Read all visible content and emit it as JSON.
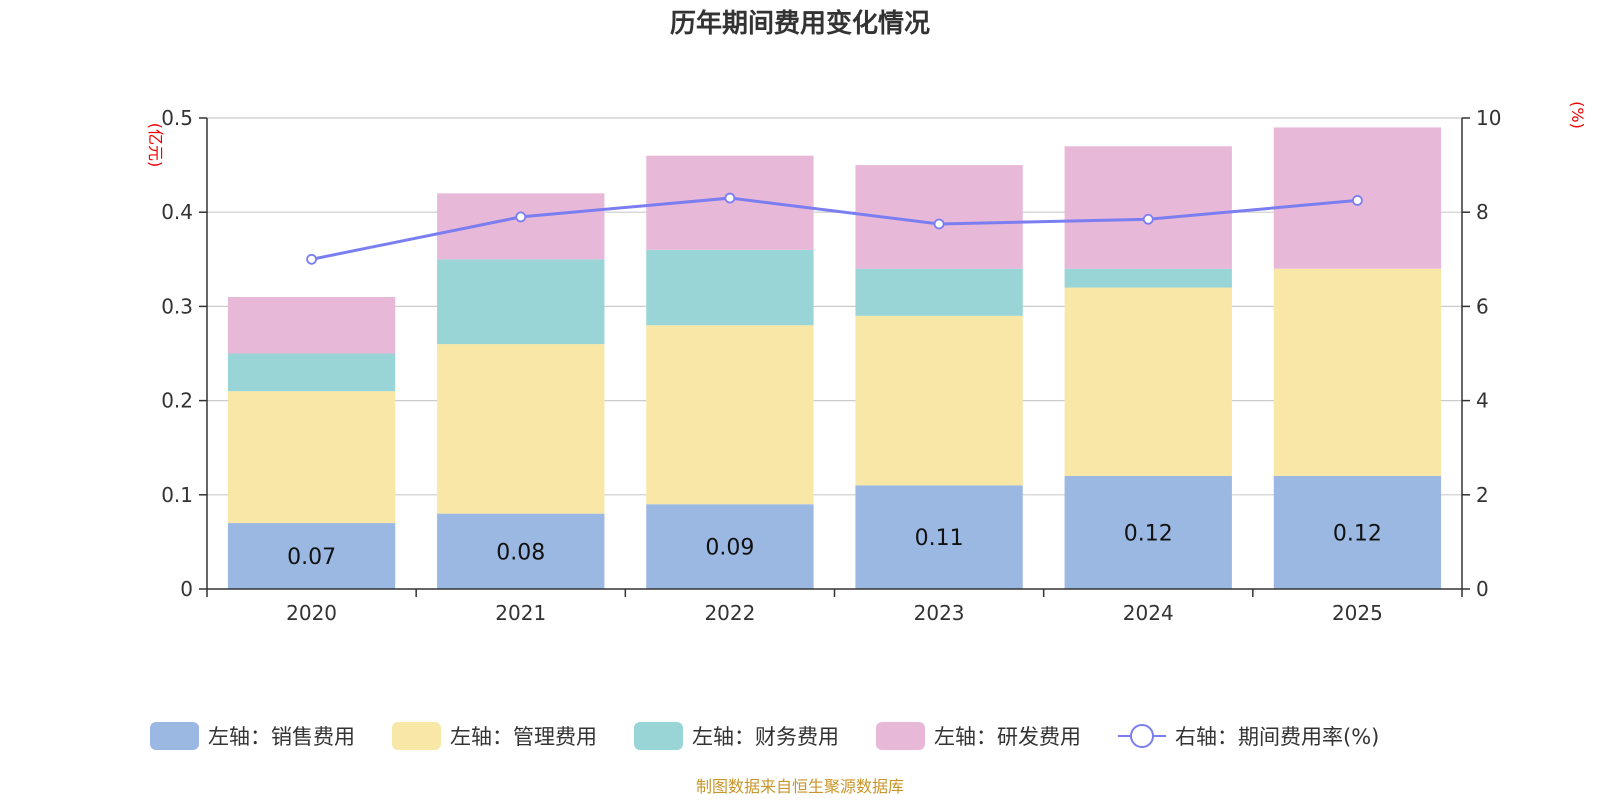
{
  "chart_data": {
    "type": "bar",
    "title": "历年期间费用变化情况",
    "categories": [
      "2020",
      "2021",
      "2022",
      "2023",
      "2024",
      "2025"
    ],
    "left_axis": {
      "unit": "(亿元)",
      "ylim": [
        0,
        0.5
      ],
      "ticks": [
        "0",
        "0.1",
        "0.2",
        "0.3",
        "0.4",
        "0.5"
      ],
      "tick_values": [
        0,
        0.1,
        0.2,
        0.3,
        0.4,
        0.5
      ]
    },
    "right_axis": {
      "unit": "(%)",
      "ylim": [
        0,
        10
      ],
      "ticks": [
        "0",
        "2",
        "4",
        "6",
        "8",
        "10"
      ],
      "tick_values": [
        0,
        2,
        4,
        6,
        8,
        10
      ]
    },
    "series": [
      {
        "name": "左轴：销售费用",
        "kind": "bar",
        "axis": "left",
        "color": "#9bb8e3",
        "values": [
          0.07,
          0.08,
          0.09,
          0.11,
          0.12,
          0.12
        ],
        "labels": [
          "0.07",
          "0.08",
          "0.09",
          "0.11",
          "0.12",
          "0.12"
        ]
      },
      {
        "name": "左轴：管理费用",
        "kind": "bar",
        "axis": "left",
        "color": "#f8e7a6",
        "values": [
          0.14,
          0.18,
          0.19,
          0.18,
          0.2,
          0.22
        ]
      },
      {
        "name": "左轴：财务费用",
        "kind": "bar",
        "axis": "left",
        "color": "#99d5d7",
        "values": [
          0.04,
          0.09,
          0.08,
          0.05,
          0.02,
          0.0
        ]
      },
      {
        "name": "左轴：研发费用",
        "kind": "bar",
        "axis": "left",
        "color": "#e8b8d9",
        "values": [
          0.06,
          0.07,
          0.1,
          0.11,
          0.13,
          0.15
        ]
      },
      {
        "name": "右轴：期间费用率(%)",
        "kind": "line",
        "axis": "right",
        "color": "#7b7ef0",
        "values": [
          7.0,
          7.9,
          8.3,
          7.75,
          7.85,
          8.25
        ]
      }
    ],
    "legend_position": "bottom",
    "grid": true
  },
  "source_note": "制图数据来自恒生聚源数据库"
}
